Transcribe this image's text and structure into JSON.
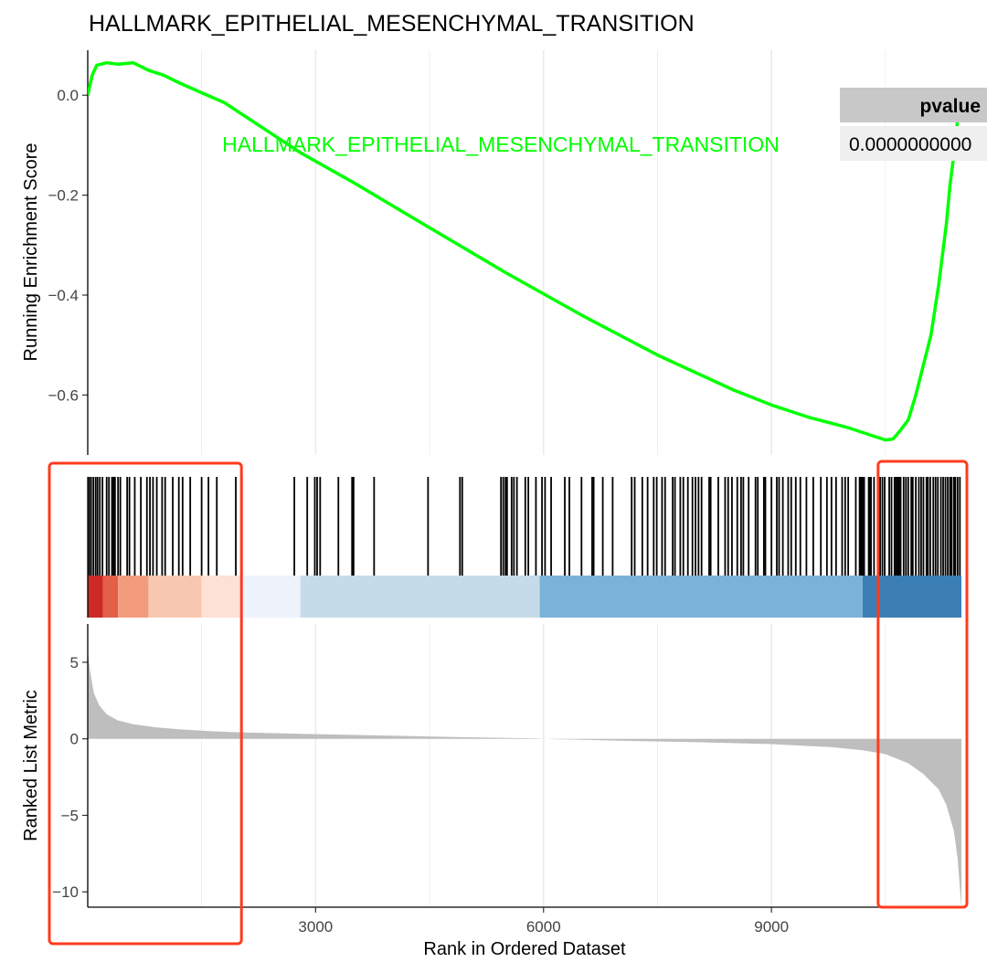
{
  "chart_data": {
    "type": "line",
    "title": "HALLMARK_EPITHELIAL_MESENCHYMAL_TRANSITION",
    "gene_set_label": "HALLMARK_EPITHELIAL_MESENCHYMAL_TRANSITION",
    "line_color": "#00ff00",
    "xlabel": "Rank in Ordered Dataset",
    "xlim": [
      1,
      11500
    ],
    "x_ticks": [
      3000,
      6000,
      9000
    ],
    "x_tick_labels": [
      "3000",
      "6000",
      "9000"
    ],
    "running_enrichment_score": {
      "ylabel": "Running Enrichment Score",
      "ylim": [
        -0.72,
        0.09
      ],
      "y_ticks": [
        0.0,
        -0.2,
        -0.4,
        -0.6
      ],
      "y_tick_labels": [
        "0.0",
        "−0.2",
        "−0.4",
        "−0.6"
      ],
      "x": [
        1,
        60,
        120,
        250,
        400,
        600,
        800,
        1000,
        1200,
        1500,
        1800,
        2100,
        2400,
        2800,
        3500,
        4500,
        5500,
        6500,
        7500,
        8500,
        9000,
        9500,
        10000,
        10300,
        10500,
        10600,
        10700,
        10800,
        10900,
        11000,
        11100,
        11200,
        11300,
        11350,
        11400,
        11450,
        11500
      ],
      "y": [
        0.0,
        0.04,
        0.06,
        0.065,
        0.062,
        0.065,
        0.05,
        0.04,
        0.025,
        0.005,
        -0.015,
        -0.045,
        -0.075,
        -0.115,
        -0.175,
        -0.265,
        -0.355,
        -0.44,
        -0.52,
        -0.59,
        -0.62,
        -0.645,
        -0.665,
        -0.68,
        -0.69,
        -0.688,
        -0.67,
        -0.65,
        -0.6,
        -0.54,
        -0.48,
        -0.38,
        -0.26,
        -0.18,
        -0.12,
        -0.05,
        0.0
      ]
    },
    "gene_hits": [
      20,
      45,
      75,
      105,
      130,
      160,
      195,
      250,
      280,
      320,
      340,
      360,
      400,
      430,
      520,
      550,
      620,
      700,
      780,
      820,
      860,
      910,
      980,
      1020,
      1120,
      1200,
      1250,
      1350,
      1500,
      1590,
      1700,
      1950,
      2030,
      2720,
      2890,
      2990,
      3020,
      3060,
      3300,
      3480,
      3500,
      3770,
      4480,
      4900,
      4930,
      5440,
      5470,
      5500,
      5520,
      5580,
      5610,
      5650,
      5760,
      5800,
      5900,
      5980,
      6020,
      6100,
      6280,
      6340,
      6500,
      6640,
      6660,
      6780,
      6910,
      7160,
      7200,
      7300,
      7370,
      7450,
      7490,
      7560,
      7600,
      7700,
      7730,
      7800,
      7840,
      7900,
      7960,
      8000,
      8040,
      8080,
      8180,
      8200,
      8300,
      8390,
      8430,
      8480,
      8550,
      8600,
      8630,
      8700,
      8790,
      8820,
      8900,
      8920,
      9000,
      9070,
      9100,
      9150,
      9220,
      9260,
      9320,
      9380,
      9460,
      9550,
      9650,
      9730,
      9790,
      9850,
      9930,
      9970,
      10010,
      10110,
      10160,
      10180,
      10200,
      10210,
      10220,
      10280,
      10300,
      10310,
      10350,
      10400,
      10430,
      10460,
      10490,
      10550,
      10580,
      10620,
      10640,
      10660,
      10680,
      10700,
      10740,
      10770,
      10800,
      10840,
      10860,
      10900,
      10940,
      10970,
      11000,
      11040,
      11060,
      11090,
      11130,
      11160,
      11190,
      11230,
      11260,
      11290,
      11320,
      11350,
      11370,
      11400,
      11420,
      11450,
      11480
    ],
    "rank_color_bands": [
      {
        "from": 1,
        "to": 200,
        "color": "#cb2a27"
      },
      {
        "from": 200,
        "to": 400,
        "color": "#e35f47"
      },
      {
        "from": 400,
        "to": 800,
        "color": "#f29c7d"
      },
      {
        "from": 800,
        "to": 1500,
        "color": "#f8c7b0"
      },
      {
        "from": 1500,
        "to": 2000,
        "color": "#fde1d5"
      },
      {
        "from": 2000,
        "to": 2800,
        "color": "#eef3fb"
      },
      {
        "from": 2800,
        "to": 5950,
        "color": "#c6dbe9"
      },
      {
        "from": 5950,
        "to": 10200,
        "color": "#79b3d8"
      },
      {
        "from": 10200,
        "to": 11500,
        "color": "#3b7fb5"
      }
    ],
    "ranked_list_metric": {
      "ylabel": "Ranked List Metric",
      "ylim": [
        -11,
        7.5
      ],
      "y_ticks": [
        5,
        0,
        -5,
        -10
      ],
      "y_tick_labels": [
        "5",
        "0",
        "−5",
        "−10"
      ],
      "fill_color": "#bebebe",
      "x": [
        1,
        30,
        80,
        150,
        250,
        400,
        600,
        900,
        1200,
        1600,
        2000,
        3000,
        4000,
        5000,
        5900,
        6100,
        7000,
        8000,
        9000,
        9800,
        10200,
        10500,
        10800,
        11000,
        11200,
        11300,
        11400,
        11450,
        11500
      ],
      "y": [
        5.8,
        4.5,
        3.0,
        2.2,
        1.6,
        1.2,
        0.95,
        0.75,
        0.62,
        0.5,
        0.42,
        0.3,
        0.2,
        0.1,
        0.02,
        -0.02,
        -0.12,
        -0.22,
        -0.35,
        -0.55,
        -0.75,
        -1.0,
        -1.6,
        -2.3,
        -3.3,
        -4.3,
        -6.0,
        -7.8,
        -11.0
      ]
    },
    "table": {
      "header": "pvalue",
      "value": "0.0000000000",
      "header_bg": "#c8c8c8",
      "cell_bg": "#efefef"
    },
    "highlight_boxes_color": "#ff3b1f",
    "highlight_boxes_rank_range": [
      [
        1,
        2000
      ],
      [
        10500,
        11500
      ]
    ]
  }
}
